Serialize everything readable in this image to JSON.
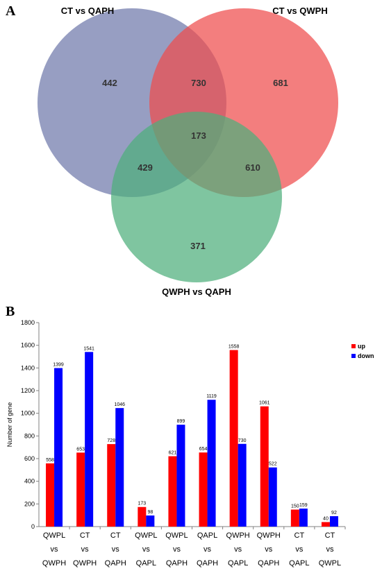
{
  "panels": {
    "a": "A",
    "b": "B"
  },
  "venn": {
    "sets": [
      {
        "label": "CT vs QAPH",
        "color": "#6f79ab",
        "only": "442"
      },
      {
        "label": "CT vs QWPH",
        "color": "#ef4c4c",
        "only": "681"
      },
      {
        "label": "QWPH vs QAPH",
        "color": "#4daf7c",
        "only": "371"
      }
    ],
    "intersections": {
      "ct_qaph__ct_qwph": "730",
      "ct_qaph__qwph_qaph": "429",
      "ct_qwph__qwph_qaph": "610",
      "all": "173"
    }
  },
  "chart_data": {
    "type": "bar",
    "ylabel": "Number of gene",
    "xlabel": "",
    "ylim": [
      0,
      1800
    ],
    "yticks": [
      0,
      200,
      400,
      600,
      800,
      1000,
      1200,
      1400,
      1600,
      1800
    ],
    "grid": false,
    "legend_position": "top-right",
    "categories": [
      [
        "QWPL",
        "vs",
        "QWPH"
      ],
      [
        "CT",
        "vs",
        "QWPH"
      ],
      [
        "CT",
        "vs",
        "QAPH"
      ],
      [
        "QWPL",
        "vs",
        "QAPL"
      ],
      [
        "QWPL",
        "vs",
        "QAPH"
      ],
      [
        "QAPL",
        "vs",
        "QAPH"
      ],
      [
        "QWPH",
        "vs",
        "QAPL"
      ],
      [
        "QWPH",
        "vs",
        "QAPH"
      ],
      [
        "CT",
        "vs",
        "QAPL"
      ],
      [
        "CT",
        "vs",
        "QWPL"
      ]
    ],
    "series": [
      {
        "name": "up",
        "color": "#ff0000",
        "values": [
          558,
          653,
          728,
          173,
          621,
          654,
          1558,
          1061,
          150,
          40
        ]
      },
      {
        "name": "down",
        "color": "#0000ff",
        "values": [
          1399,
          1541,
          1046,
          98,
          899,
          1119,
          730,
          522,
          159,
          92
        ]
      }
    ]
  }
}
